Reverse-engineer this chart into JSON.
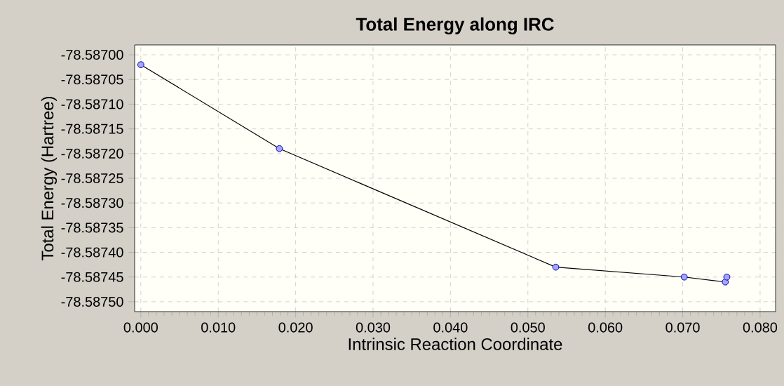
{
  "chart_data": {
    "type": "line",
    "title": "Total Energy along IRC",
    "xlabel": "Intrinsic Reaction Coordinate",
    "ylabel": "Total Energy (Hartree)",
    "x": [
      0.0,
      0.0179,
      0.0536,
      0.0702,
      0.0755,
      0.0757
    ],
    "series": [
      {
        "color": "#000000",
        "values": [
          -78.58702,
          -78.58719,
          -78.58743,
          -78.58745,
          -78.58746,
          -78.58745
        ]
      }
    ],
    "marker": "circle",
    "line_style": "solid",
    "grid": true,
    "xlim": [
      -0.0008,
      0.082
    ],
    "ylim": [
      -78.58752,
      -78.58698
    ],
    "xticks": [
      {
        "value": 0,
        "label": "0.000"
      },
      {
        "value": 0.01,
        "label": "0.010"
      },
      {
        "value": 0.02,
        "label": "0.020"
      },
      {
        "value": 0.03,
        "label": "0.030"
      },
      {
        "value": 0.04,
        "label": "0.040"
      },
      {
        "value": 0.05,
        "label": "0.050"
      },
      {
        "value": 0.06,
        "label": "0.060"
      },
      {
        "value": 0.07,
        "label": "0.070"
      },
      {
        "value": 0.08,
        "label": "0.080"
      }
    ],
    "yticks": [
      {
        "value": -78.587,
        "label": "-78.58700"
      },
      {
        "value": -78.58705,
        "label": "-78.58705"
      },
      {
        "value": -78.5871,
        "label": "-78.58710"
      },
      {
        "value": -78.58715,
        "label": "-78.58715"
      },
      {
        "value": -78.5872,
        "label": "-78.58720"
      },
      {
        "value": -78.58725,
        "label": "-78.58725"
      },
      {
        "value": -78.5873,
        "label": "-78.58730"
      },
      {
        "value": -78.58735,
        "label": "-78.58735"
      },
      {
        "value": -78.5874,
        "label": "-78.58740"
      },
      {
        "value": -78.58745,
        "label": "-78.58745"
      },
      {
        "value": -78.5875,
        "label": "-78.58750"
      }
    ]
  }
}
